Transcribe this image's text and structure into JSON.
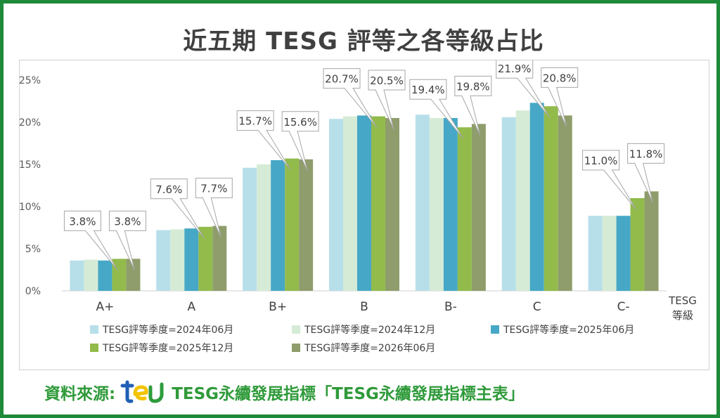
{
  "chart_data": {
    "type": "bar",
    "title": "近五期 TESG 評等之各等級占比",
    "xlabel": "TESG 等級",
    "ylabel": "",
    "ylim": [
      0,
      25
    ],
    "yticks": [
      "0%",
      "5%",
      "10%",
      "15%",
      "20%",
      "25%"
    ],
    "categories": [
      "A+",
      "A",
      "B+",
      "B",
      "B-",
      "C",
      "C-"
    ],
    "series": [
      {
        "name": "TESG評等季度=2024年06月",
        "color": "#b7dfea",
        "values": [
          3.6,
          7.2,
          14.6,
          20.4,
          20.9,
          20.6,
          8.9
        ]
      },
      {
        "name": "TESG評等季度=2024年12月",
        "color": "#d5ebd6",
        "values": [
          3.7,
          7.3,
          15.0,
          20.7,
          20.5,
          21.4,
          8.9
        ]
      },
      {
        "name": "TESG評等季度=2025年06月",
        "color": "#46a8c6",
        "values": [
          3.6,
          7.4,
          15.5,
          20.8,
          20.5,
          22.3,
          8.9
        ]
      },
      {
        "name": "TESG評等季度=2025年12月",
        "color": "#92bb4c",
        "values": [
          3.8,
          7.6,
          15.7,
          20.7,
          19.4,
          21.9,
          11.0
        ]
      },
      {
        "name": "TESG評等季度=2026年06月",
        "color": "#8f9d6c",
        "values": [
          3.8,
          7.7,
          15.6,
          20.5,
          19.8,
          20.8,
          11.8
        ]
      }
    ],
    "callouts": [
      {
        "category": 0,
        "series": 3,
        "label": "3.8%"
      },
      {
        "category": 0,
        "series": 4,
        "label": "3.8%"
      },
      {
        "category": 1,
        "series": 3,
        "label": "7.6%"
      },
      {
        "category": 1,
        "series": 4,
        "label": "7.7%"
      },
      {
        "category": 2,
        "series": 3,
        "label": "15.7%"
      },
      {
        "category": 2,
        "series": 4,
        "label": "15.6%"
      },
      {
        "category": 3,
        "series": 3,
        "label": "20.7%"
      },
      {
        "category": 3,
        "series": 4,
        "label": "20.5%"
      },
      {
        "category": 4,
        "series": 3,
        "label": "19.4%"
      },
      {
        "category": 4,
        "series": 4,
        "label": "19.8%"
      },
      {
        "category": 5,
        "series": 3,
        "label": "21.9%"
      },
      {
        "category": 5,
        "series": 4,
        "label": "20.8%"
      },
      {
        "category": 6,
        "series": 3,
        "label": "11.0%"
      },
      {
        "category": 6,
        "series": 4,
        "label": "11.8%"
      }
    ],
    "grid": false,
    "legend": "bottom"
  },
  "axis_title": {
    "line1": "TESG",
    "line2": "等級"
  },
  "source": {
    "prefix": "資料來源:",
    "text": "TESG永續發展指標「TESG永續發展指標主表」"
  },
  "colors": {
    "frame": "#1e8a3a",
    "source_text": "#2f9a3a",
    "logo_blue": "#1f5fb4",
    "logo_yellow": "#f2c300",
    "logo_green": "#2e9b3c"
  }
}
